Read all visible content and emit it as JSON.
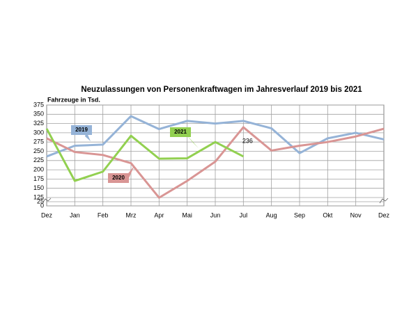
{
  "chart_data": {
    "type": "line",
    "title": "Neuzulassungen von Personenkraftwagen im Jahresverlauf 2019 bis 2021",
    "subtitle": "Fahrzeuge in Tsd.",
    "categories": [
      "Dez",
      "Jan",
      "Feb",
      "Mrz",
      "Apr",
      "Mai",
      "Jun",
      "Jul",
      "Aug",
      "Sep",
      "Okt",
      "Nov",
      "Dez"
    ],
    "series": [
      {
        "name": "2019",
        "color": "#95b3d7",
        "values": [
          236,
          265,
          268,
          345,
          310,
          332,
          325,
          332,
          312,
          245,
          285,
          300,
          282
        ]
      },
      {
        "name": "2020",
        "color": "#d99594",
        "values": [
          285,
          248,
          240,
          218,
          121,
          170,
          222,
          315,
          252,
          265,
          275,
          290,
          311
        ]
      },
      {
        "name": "2021",
        "color": "#92d050",
        "values": [
          311,
          170,
          195,
          292,
          230,
          231,
          275,
          236,
          null,
          null,
          null,
          null,
          null
        ],
        "value_labels": [
          null,
          null,
          null,
          null,
          null,
          null,
          null,
          "236",
          null,
          null,
          null,
          null,
          null
        ]
      }
    ],
    "ylim": [
      0,
      375
    ],
    "yticks": [
      0,
      25,
      125,
      150,
      175,
      200,
      225,
      250,
      275,
      300,
      325,
      350,
      375
    ],
    "axis_break": [
      25,
      125
    ],
    "grid": true
  }
}
